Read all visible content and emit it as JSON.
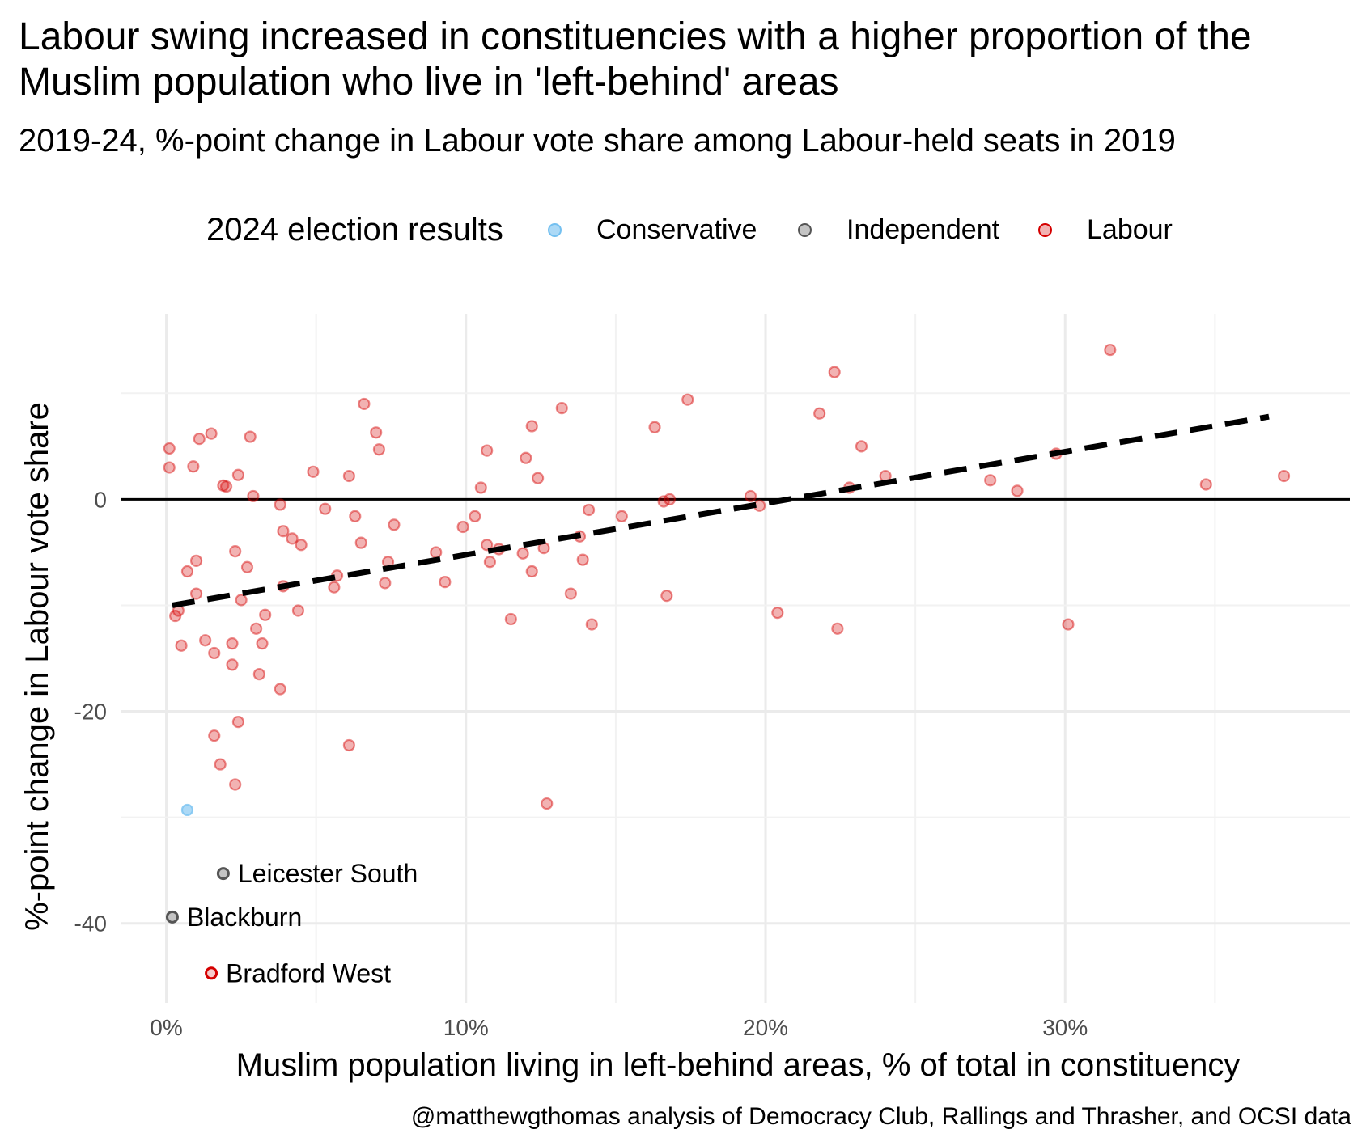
{
  "chart_data": {
    "type": "scatter",
    "title": "Labour swing increased in constituencies with a higher proportion of the Muslim population who live in 'left-behind' areas",
    "subtitle": "2019-24, %-point change in Labour vote share among Labour-held seats in 2019",
    "xlabel": "Muslim population living in left-behind areas, % of total in constituency",
    "ylabel": "%-point change in Labour vote share",
    "caption": "@matthewgthomas analysis of Democracy Club, Rallings and Thrasher, and OCSI data",
    "xlim": [
      -1.5,
      39.5
    ],
    "ylim": [
      -47.5,
      17.5
    ],
    "x_ticks": [
      0,
      10,
      20,
      30
    ],
    "x_tick_labels": [
      "0%",
      "10%",
      "20%",
      "30%"
    ],
    "y_ticks": [
      0,
      -20,
      -40
    ],
    "y_tick_labels": [
      "0",
      "-20",
      "-40"
    ],
    "grid": true,
    "legend": {
      "title": "2024 election results",
      "placement": "top",
      "items": [
        {
          "label": "Conservative",
          "color": "#74c0f0"
        },
        {
          "label": "Independent",
          "color": "#555555"
        },
        {
          "label": "Labour",
          "color": "#d50000"
        }
      ]
    },
    "colors": {
      "Conservative": "#74c0f0",
      "Independent": "#555555",
      "Labour": "#d50000",
      "trend": "#000000",
      "zero_line": "#000000"
    },
    "trend_line": {
      "x": [
        0.2,
        36.8
      ],
      "y": [
        -10,
        7.8
      ],
      "style": "dashed"
    },
    "reference_line_y": 0,
    "series": [
      {
        "name": "Labour",
        "points": [
          [
            0.1,
            4.8
          ],
          [
            0.1,
            3.0
          ],
          [
            0.3,
            -11.0
          ],
          [
            0.4,
            -10.5
          ],
          [
            0.5,
            -13.8
          ],
          [
            0.7,
            -6.8
          ],
          [
            0.9,
            3.1
          ],
          [
            1.0,
            -5.8
          ],
          [
            1.0,
            -8.9
          ],
          [
            1.1,
            5.7
          ],
          [
            1.3,
            -13.3
          ],
          [
            1.5,
            6.2
          ],
          [
            1.6,
            -22.3
          ],
          [
            1.6,
            -14.5
          ],
          [
            1.8,
            -25.0
          ],
          [
            1.9,
            1.3
          ],
          [
            2.0,
            1.2
          ],
          [
            2.2,
            -13.6
          ],
          [
            2.2,
            -15.6
          ],
          [
            2.3,
            -4.9
          ],
          [
            2.3,
            -26.9
          ],
          [
            2.4,
            2.3
          ],
          [
            2.4,
            -21.0
          ],
          [
            2.5,
            -9.5
          ],
          [
            2.7,
            -6.4
          ],
          [
            2.8,
            5.9
          ],
          [
            2.9,
            0.3
          ],
          [
            3.0,
            -12.2
          ],
          [
            3.1,
            -16.5
          ],
          [
            3.2,
            -13.6
          ],
          [
            3.3,
            -10.9
          ],
          [
            3.8,
            -0.5
          ],
          [
            3.8,
            -17.9
          ],
          [
            3.9,
            -3.0
          ],
          [
            3.9,
            -8.2
          ],
          [
            4.2,
            -3.7
          ],
          [
            4.4,
            -10.5
          ],
          [
            4.5,
            -4.3
          ],
          [
            4.9,
            2.6
          ],
          [
            5.3,
            -0.9
          ],
          [
            5.6,
            -8.3
          ],
          [
            5.7,
            -7.2
          ],
          [
            6.1,
            2.2
          ],
          [
            6.1,
            -23.2
          ],
          [
            6.3,
            -1.6
          ],
          [
            6.5,
            -4.1
          ],
          [
            6.6,
            9.0
          ],
          [
            7.0,
            6.3
          ],
          [
            7.1,
            4.7
          ],
          [
            7.3,
            -7.9
          ],
          [
            7.4,
            -5.9
          ],
          [
            7.6,
            -2.4
          ],
          [
            9.0,
            -5.0
          ],
          [
            9.3,
            -7.8
          ],
          [
            9.9,
            -2.6
          ],
          [
            10.3,
            -1.6
          ],
          [
            10.5,
            1.1
          ],
          [
            10.7,
            4.6
          ],
          [
            10.7,
            -4.3
          ],
          [
            10.8,
            -5.9
          ],
          [
            11.1,
            -4.7
          ],
          [
            11.5,
            -11.3
          ],
          [
            11.9,
            -5.1
          ],
          [
            12.0,
            3.9
          ],
          [
            12.2,
            -6.8
          ],
          [
            12.2,
            6.9
          ],
          [
            12.4,
            2.0
          ],
          [
            12.6,
            -4.6
          ],
          [
            12.7,
            -28.7
          ],
          [
            13.2,
            8.6
          ],
          [
            13.5,
            -8.9
          ],
          [
            13.8,
            -3.5
          ],
          [
            13.9,
            -5.7
          ],
          [
            14.1,
            -1.0
          ],
          [
            14.2,
            -11.8
          ],
          [
            15.2,
            -1.6
          ],
          [
            16.3,
            6.8
          ],
          [
            16.6,
            -0.2
          ],
          [
            16.7,
            -9.1
          ],
          [
            16.8,
            0.0
          ],
          [
            17.4,
            9.4
          ],
          [
            19.5,
            0.3
          ],
          [
            19.8,
            -0.6
          ],
          [
            20.4,
            -10.7
          ],
          [
            21.8,
            8.1
          ],
          [
            22.3,
            12.0
          ],
          [
            22.4,
            -12.2
          ],
          [
            22.8,
            1.1
          ],
          [
            23.2,
            5.0
          ],
          [
            24.0,
            2.2
          ],
          [
            27.5,
            1.8
          ],
          [
            28.4,
            0.8
          ],
          [
            29.7,
            4.3
          ],
          [
            30.1,
            -11.8
          ],
          [
            31.5,
            14.1
          ],
          [
            34.7,
            1.4
          ],
          [
            37.3,
            2.2
          ]
        ]
      },
      {
        "name": "Conservative",
        "points": [
          [
            0.7,
            -29.3
          ]
        ]
      },
      {
        "name": "Independent",
        "points": [
          [
            1.9,
            -35.3
          ],
          [
            0.2,
            -39.4
          ]
        ],
        "labels": [
          "Leicester South",
          "Blackburn"
        ]
      },
      {
        "name": "Labour",
        "highlight": true,
        "points": [
          [
            1.5,
            -44.7
          ]
        ],
        "labels": [
          "Bradford West"
        ]
      }
    ]
  }
}
